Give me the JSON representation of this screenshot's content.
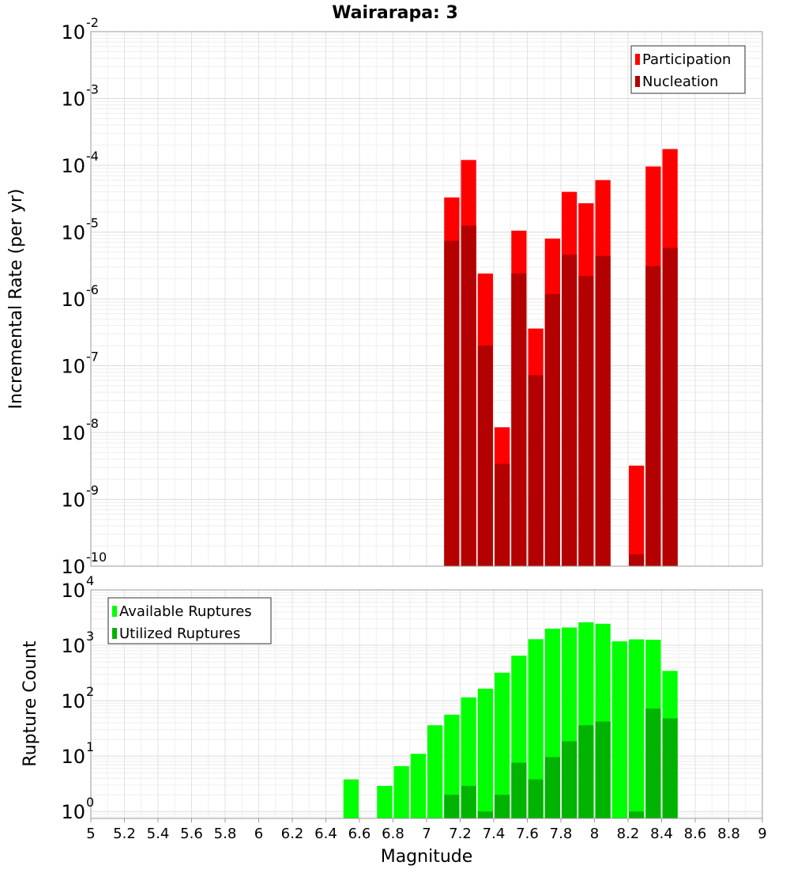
{
  "chart_data": [
    {
      "type": "bar",
      "title": "Wairarapa: 3",
      "xlabel": "",
      "ylabel": "Incremental Rate (per yr)",
      "xlim": [
        5,
        9
      ],
      "ylim": [
        1e-10,
        0.01
      ],
      "yscale": "log",
      "ytick_exponents": [
        -10,
        -9,
        -8,
        -7,
        -6,
        -5,
        -4,
        -3,
        -2
      ],
      "grid": true,
      "legend_position": "top-right",
      "bin_width": 0.1,
      "x": [
        7.15,
        7.25,
        7.35,
        7.45,
        7.55,
        7.65,
        7.75,
        7.85,
        7.95,
        8.05,
        8.25,
        8.35,
        8.45
      ],
      "series": [
        {
          "name": "Participation",
          "color": "#ff0000",
          "values": [
            3.3e-05,
            0.00012,
            2.4e-06,
            1.2e-08,
            1.05e-05,
            3.6e-07,
            8e-06,
            4e-05,
            2.7e-05,
            6e-05,
            3.2e-09,
            9.6e-05,
            0.000175
          ]
        },
        {
          "name": "Nucleation",
          "color": "#b30000",
          "values": [
            7.4e-06,
            1.25e-05,
            2e-07,
            3.4e-09,
            2.4e-06,
            7.2e-08,
            1.18e-06,
            4.6e-06,
            2.2e-06,
            4.4e-06,
            1.5e-10,
            3.1e-06,
            5.8e-06
          ]
        }
      ]
    },
    {
      "type": "bar",
      "title": "",
      "xlabel": "Magnitude",
      "ylabel": "Rupture Count",
      "xlim": [
        5,
        9
      ],
      "ylim": [
        0.75,
        10000
      ],
      "yscale": "log",
      "ytick_exponents": [
        0,
        1,
        2,
        3,
        4
      ],
      "x_ticks": [
        "5",
        "5.2",
        "5.4",
        "5.6",
        "5.8",
        "6",
        "6.2",
        "6.4",
        "6.6",
        "6.8",
        "7",
        "7.2",
        "7.4",
        "7.6",
        "7.8",
        "8",
        "8.2",
        "8.4",
        "8.6",
        "8.8",
        "9"
      ],
      "grid": true,
      "legend_position": "top-left",
      "bin_width": 0.1,
      "x": [
        6.55,
        6.75,
        6.85,
        6.95,
        7.05,
        7.15,
        7.25,
        7.35,
        7.45,
        7.55,
        7.65,
        7.75,
        7.85,
        7.95,
        8.05,
        8.15,
        8.25,
        8.35,
        8.45
      ],
      "series": [
        {
          "name": "Available Ruptures",
          "color": "#00ff00",
          "values": [
            3.8,
            2.9,
            6.6,
            11,
            36,
            56,
            115,
            165,
            320,
            650,
            1290,
            2000,
            2100,
            2600,
            2450,
            1180,
            1280,
            1260,
            345
          ]
        },
        {
          "name": "Utilized Ruptures",
          "color": "#00b300",
          "values": [
            null,
            null,
            null,
            null,
            null,
            2,
            2.9,
            1,
            2,
            7.6,
            3.8,
            9.6,
            18.5,
            36,
            42,
            null,
            1,
            72,
            48
          ]
        }
      ]
    }
  ]
}
